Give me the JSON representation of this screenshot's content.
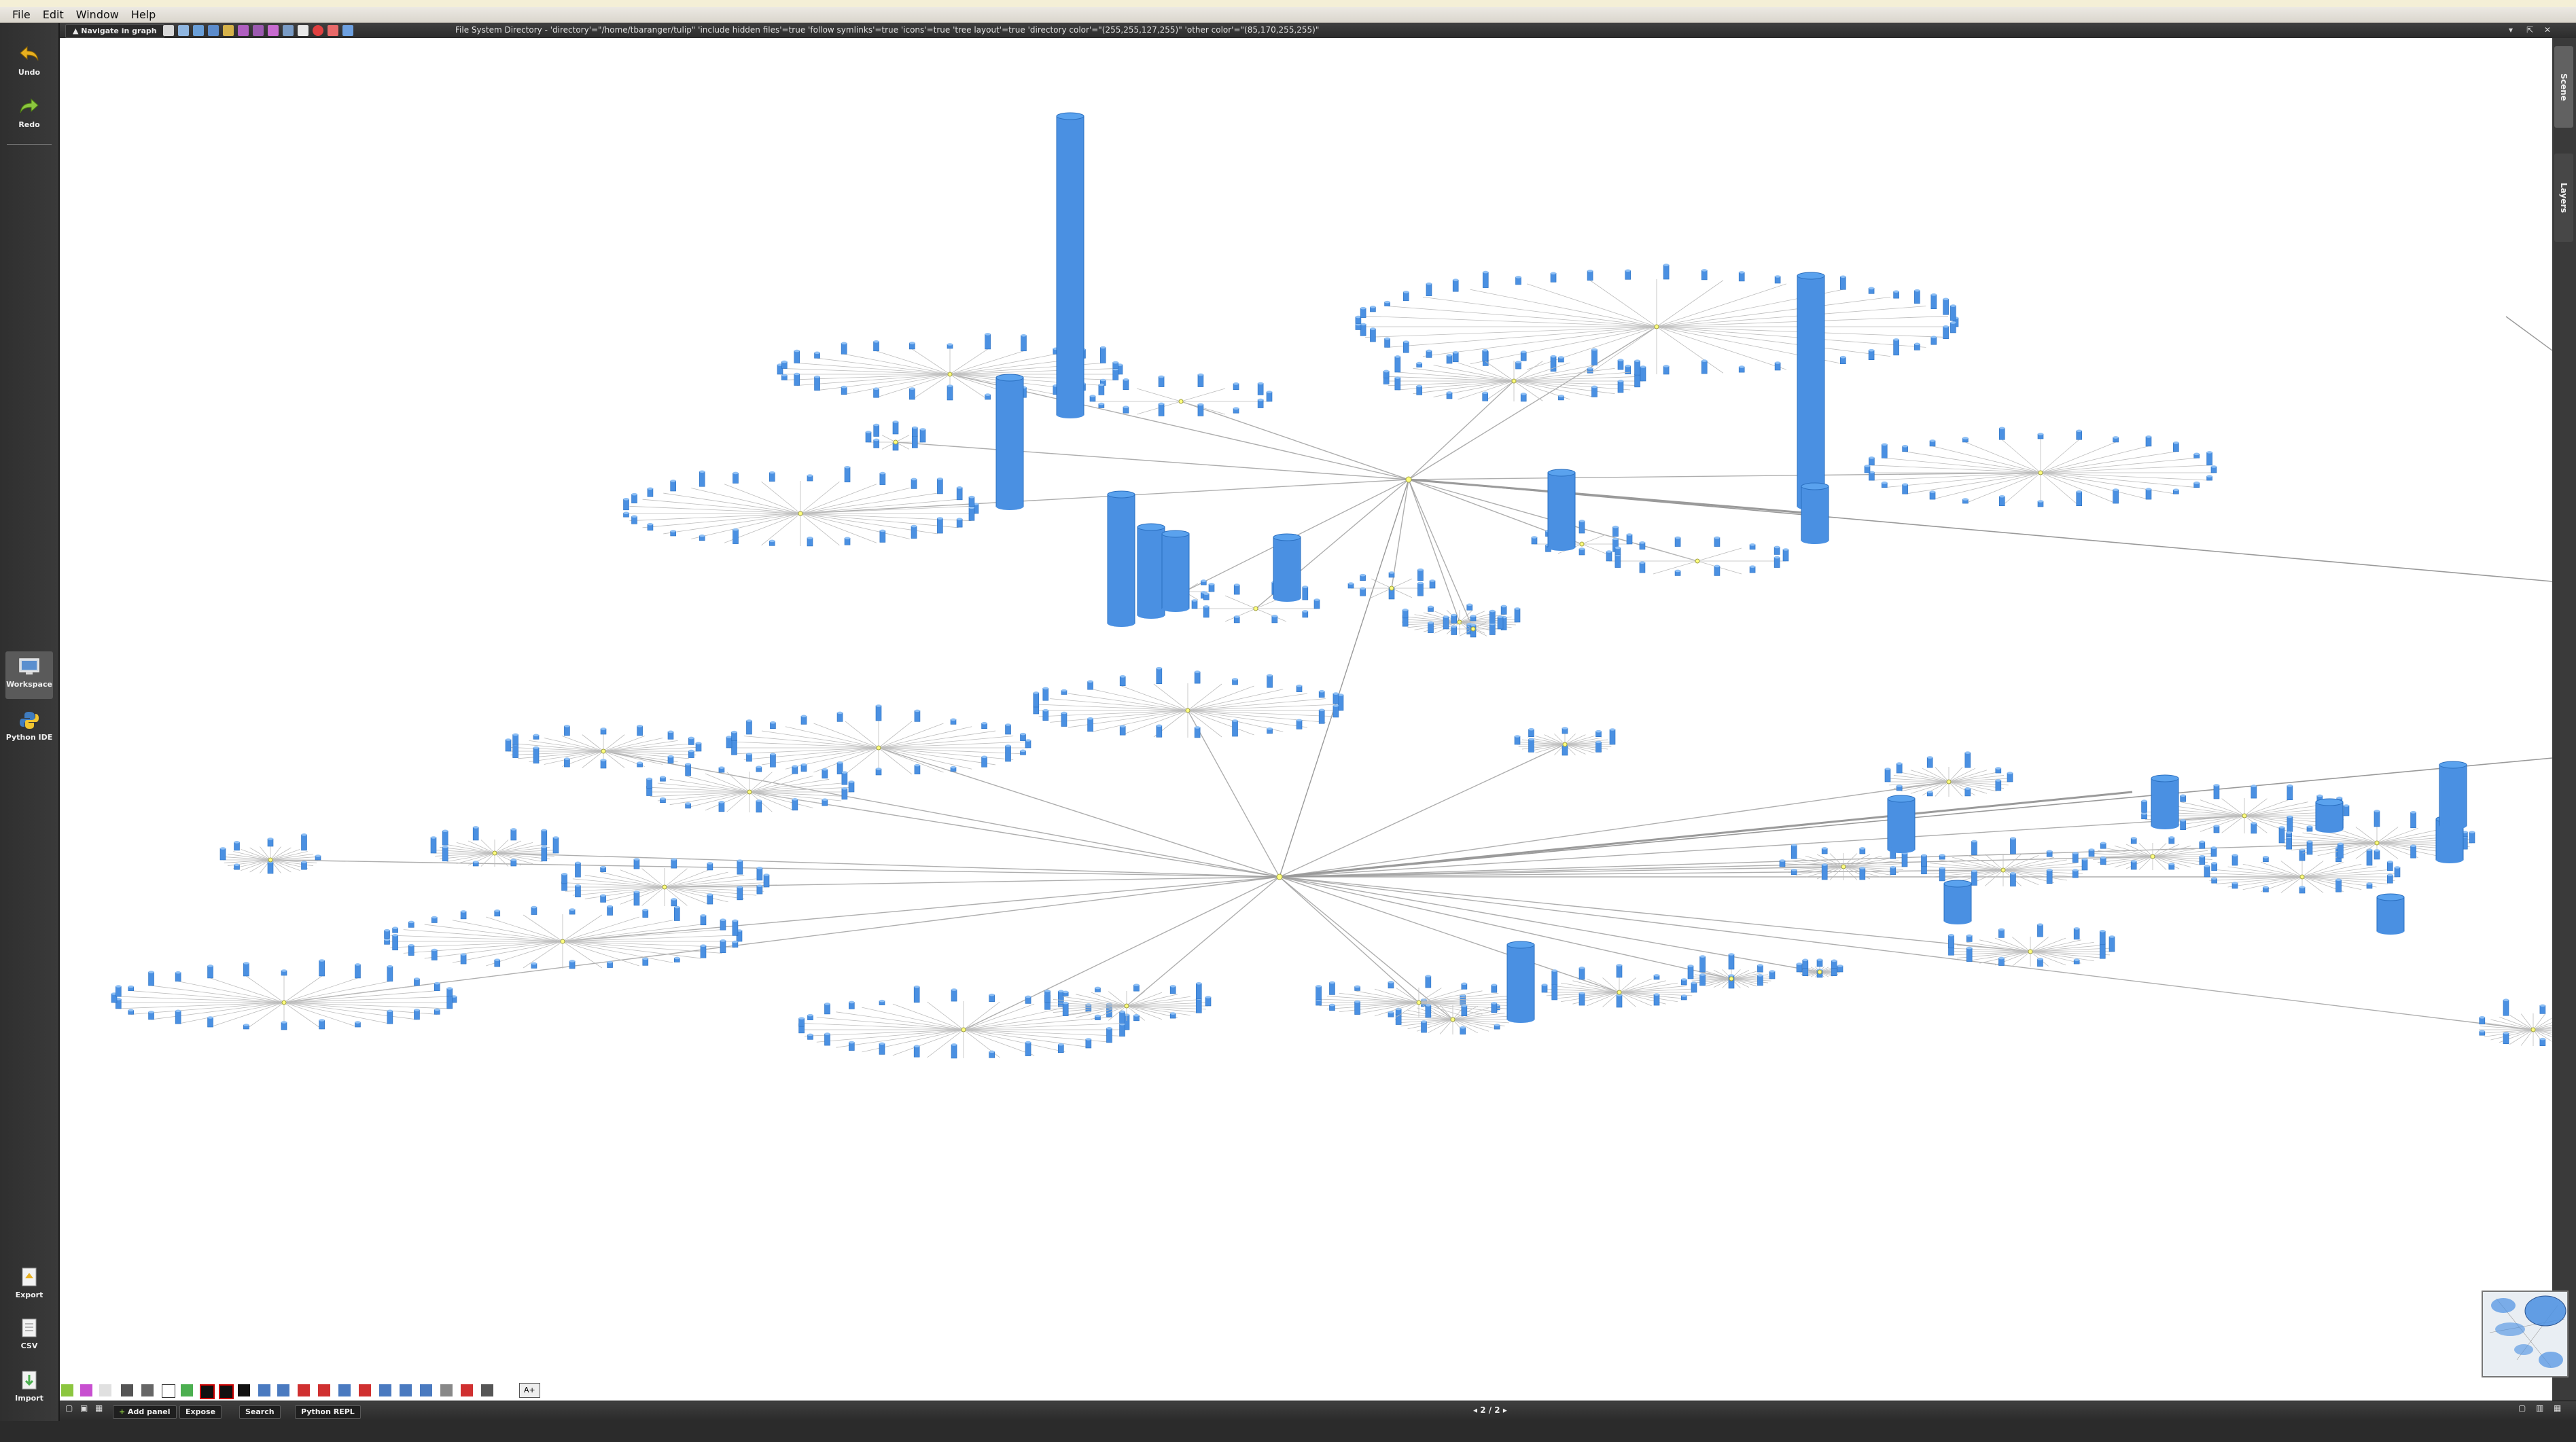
{
  "menu": [
    "File",
    "Edit",
    "Window",
    "Help"
  ],
  "sidebar": {
    "undo": "Undo",
    "redo": "Redo",
    "workspace": "Workspace",
    "python_ide": "Python IDE",
    "export": "Export",
    "csv": "CSV",
    "import": "Import"
  },
  "toolbar": {
    "navigate_label": "Navigate in graph",
    "graph_title": "File System Directory - 'directory'=\"/home/tbaranger/tulip\" 'include hidden files'=true 'follow symlinks'=true 'icons'=true 'tree layout'=true 'directory color'=\"(255,255,127,255)\" 'other color'=\"(85,170,255,255)\""
  },
  "right_panel": {
    "scene_tab": "Scene",
    "layers_tab": "Layers"
  },
  "statusbar": {
    "add_panel": "Add panel",
    "expose": "Expose",
    "search": "Search",
    "python_repl": "Python REPL",
    "pager": "2 / 2"
  },
  "bottom_toolbar": {
    "text_button": "A+"
  },
  "colors": {
    "node_color": "#4a90e2",
    "directory_color": "#ffff7f",
    "edge_color": "#9a9a9a",
    "panel_dark": "#3b3b3b"
  }
}
